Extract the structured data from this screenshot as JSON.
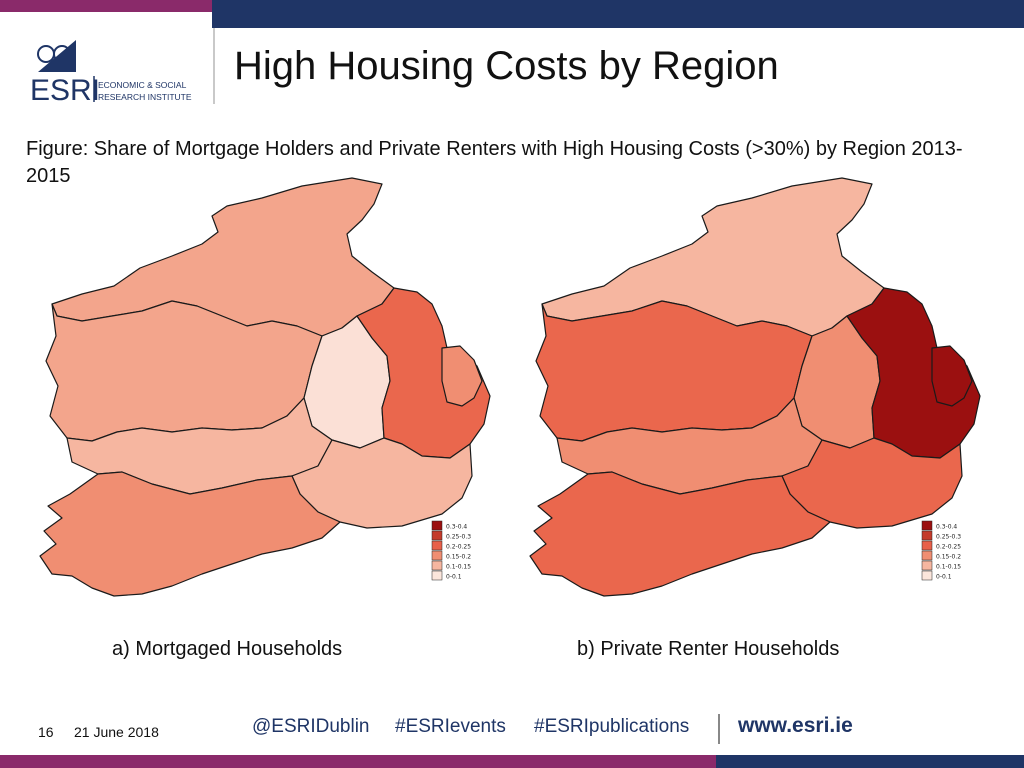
{
  "header": {
    "title": "High Housing Costs by Region",
    "logo_text": "ESRI",
    "logo_tagline_1": "ECONOMIC & SOCIAL",
    "logo_tagline_2": "RESEARCH INSTITUTE"
  },
  "figure": {
    "subtitle": "Figure: Share of Mortgage Holders and Private Renters with High Housing Costs (>30%) by Region 2013-2015",
    "legend_classes": [
      "0.3-0.4",
      "0.25-0.3",
      "0.2-0.25",
      "0.15-0.2",
      "0.1-0.15",
      "0-0.1"
    ],
    "legend_colors": [
      "#9b1010",
      "#c43a2a",
      "#e8604a",
      "#f08e72",
      "#f6b6a0",
      "#fbe6dc"
    ],
    "maps": [
      {
        "caption": "a) Mortgaged Households",
        "regions": {
          "border": "#f3a58c",
          "west": "#f3a58c",
          "midlands": "#fbe0d6",
          "mideast": "#ea674d",
          "dublin": "#f08e72",
          "mid_west": "#f6b6a0",
          "south_east": "#f6b6a0",
          "south_west": "#f08e72"
        }
      },
      {
        "caption": "b) Private Renter Households",
        "regions": {
          "border": "#f6b6a0",
          "west": "#ea674d",
          "midlands": "#f08e72",
          "mideast": "#9b1010",
          "dublin": "#9b1010",
          "mid_west": "#f08e72",
          "south_east": "#ea674d",
          "south_west": "#ea674d"
        }
      }
    ]
  },
  "footer": {
    "slide_number": "16",
    "date": "21 June 2018",
    "tags": [
      "@ESRIDublin",
      "#ESRIevents",
      "#ESRIpublications"
    ],
    "website": "www.esri.ie"
  },
  "colors": {
    "accent_purple": "#8a2a6a",
    "accent_navy": "#1f3566",
    "region_outline": "#1a1a1a"
  }
}
